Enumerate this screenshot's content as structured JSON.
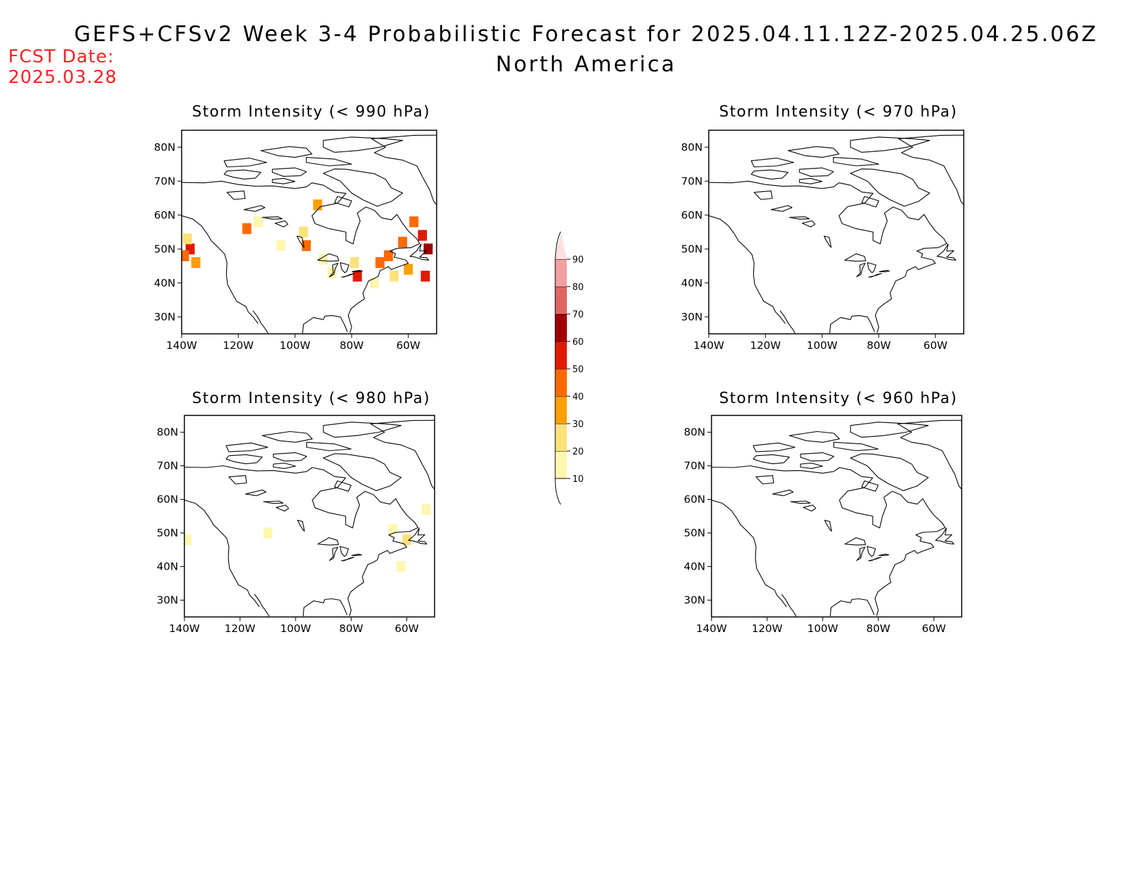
{
  "header": {
    "title": "GEFS+CFSv2 Week 3-4 Probabilistic Forecast for 2025.04.11.12Z-2025.04.25.06Z",
    "subtitle": "North America",
    "fcst_label": "FCST Date:",
    "fcst_date": "2025.03.28"
  },
  "panels": [
    {
      "title": "Storm Intensity (< 990 hPa)"
    },
    {
      "title": "Storm Intensity (< 970 hPa)"
    },
    {
      "title": "Storm Intensity (< 980 hPa)"
    },
    {
      "title": "Storm Intensity (< 960 hPa)"
    }
  ],
  "axes": {
    "lat_ticks": [
      "80N",
      "70N",
      "60N",
      "50N",
      "40N",
      "30N"
    ],
    "lon_ticks": [
      "140W",
      "120W",
      "100W",
      "80W",
      "60W"
    ]
  },
  "colorbar": {
    "levels": [
      "10",
      "20",
      "30",
      "40",
      "50",
      "60",
      "70",
      "80",
      "90"
    ],
    "colors": [
      "#fff6b0",
      "#fde27a",
      "#ffa000",
      "#ff6a00",
      "#e01a00",
      "#a00000",
      "#e06666",
      "#f2a0a0",
      "#ffe0e0"
    ]
  },
  "chart_data": [
    {
      "type": "heatmap",
      "title": "Storm Intensity (< 990 hPa)",
      "x_unit": "longitude",
      "y_unit": "latitude",
      "xlim": [
        "140W",
        "50W"
      ],
      "ylim": [
        "25N",
        "85N"
      ],
      "cells": [
        {
          "lon": -137,
          "lat": 50,
          "p": 55
        },
        {
          "lon": -139,
          "lat": 48,
          "p": 40
        },
        {
          "lon": -135,
          "lat": 46,
          "p": 30
        },
        {
          "lon": -138,
          "lat": 53,
          "p": 20
        },
        {
          "lon": -117,
          "lat": 56,
          "p": 45
        },
        {
          "lon": -113,
          "lat": 58,
          "p": 10
        },
        {
          "lon": -105,
          "lat": 51,
          "p": 10
        },
        {
          "lon": -96,
          "lat": 51,
          "p": 45
        },
        {
          "lon": -97,
          "lat": 55,
          "p": 25
        },
        {
          "lon": -90,
          "lat": 47,
          "p": 15
        },
        {
          "lon": -87,
          "lat": 43,
          "p": 10
        },
        {
          "lon": -92,
          "lat": 63,
          "p": 30
        },
        {
          "lon": -78,
          "lat": 42,
          "p": 55
        },
        {
          "lon": -79,
          "lat": 46,
          "p": 20
        },
        {
          "lon": -70,
          "lat": 46,
          "p": 45
        },
        {
          "lon": -67,
          "lat": 48,
          "p": 40
        },
        {
          "lon": -62,
          "lat": 52,
          "p": 45
        },
        {
          "lon": -58,
          "lat": 58,
          "p": 40
        },
        {
          "lon": -55,
          "lat": 54,
          "p": 55
        },
        {
          "lon": -53,
          "lat": 50,
          "p": 60
        },
        {
          "lon": -54,
          "lat": 42,
          "p": 50
        },
        {
          "lon": -60,
          "lat": 44,
          "p": 35
        },
        {
          "lon": -65,
          "lat": 42,
          "p": 20
        },
        {
          "lon": -72,
          "lat": 40,
          "p": 15
        }
      ]
    },
    {
      "type": "heatmap",
      "title": "Storm Intensity (< 970 hPa)",
      "x_unit": "longitude",
      "y_unit": "latitude",
      "xlim": [
        "140W",
        "50W"
      ],
      "ylim": [
        "25N",
        "85N"
      ],
      "cells": []
    },
    {
      "type": "heatmap",
      "title": "Storm Intensity (< 980 hPa)",
      "x_unit": "longitude",
      "y_unit": "latitude",
      "xlim": [
        "140W",
        "50W"
      ],
      "ylim": [
        "25N",
        "85N"
      ],
      "cells": [
        {
          "lon": -139,
          "lat": 48,
          "p": 15
        },
        {
          "lon": -110,
          "lat": 50,
          "p": 10
        },
        {
          "lon": -65,
          "lat": 51,
          "p": 15
        },
        {
          "lon": -60,
          "lat": 48,
          "p": 20
        },
        {
          "lon": -53,
          "lat": 57,
          "p": 15
        },
        {
          "lon": -62,
          "lat": 40,
          "p": 10
        }
      ]
    },
    {
      "type": "heatmap",
      "title": "Storm Intensity (< 960 hPa)",
      "x_unit": "longitude",
      "y_unit": "latitude",
      "xlim": [
        "140W",
        "50W"
      ],
      "ylim": [
        "25N",
        "85N"
      ],
      "cells": []
    }
  ]
}
